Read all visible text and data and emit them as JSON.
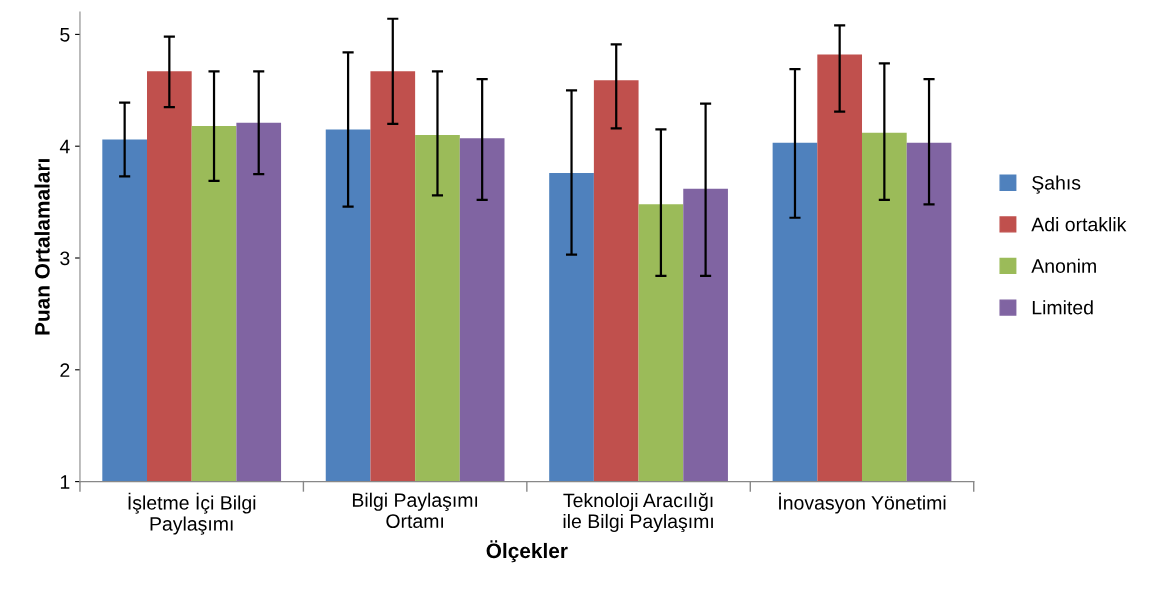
{
  "chart_data": {
    "type": "bar",
    "xlabel": "Ölçekler",
    "ylabel": "Puan Ortalamaları",
    "categories": [
      "İşletme İçi Bilgi\nPaylaşımı",
      "Bilgi Paylaşımı\nOrtamı",
      "Teknoloji Aracılığı\nile Bilgi Paylaşımı",
      "İnovasyon Yönetimi"
    ],
    "series": [
      {
        "name": "Şahıs",
        "color": "#4f81bd",
        "values": [
          4.06,
          4.15,
          3.76,
          4.03
        ],
        "errors": [
          [
            3.73,
            4.39
          ],
          [
            3.46,
            4.84
          ],
          [
            3.03,
            4.5
          ],
          [
            3.36,
            4.69
          ]
        ]
      },
      {
        "name": "Adi ortaklik",
        "color": "#c0504d",
        "values": [
          4.67,
          4.67,
          4.59,
          4.82
        ],
        "errors": [
          [
            4.35,
            4.98
          ],
          [
            4.2,
            5.14
          ],
          [
            4.16,
            4.91
          ],
          [
            4.31,
            5.08
          ]
        ]
      },
      {
        "name": "Anonim",
        "color": "#9bbb59",
        "values": [
          4.18,
          4.1,
          3.48,
          4.12
        ],
        "errors": [
          [
            3.69,
            4.67
          ],
          [
            3.56,
            4.67
          ],
          [
            2.84,
            4.15
          ],
          [
            3.52,
            4.74
          ]
        ]
      },
      {
        "name": "Limited",
        "color": "#8064a2",
        "values": [
          4.21,
          4.07,
          3.62,
          4.03
        ],
        "errors": [
          [
            3.75,
            4.67
          ],
          [
            3.52,
            4.6
          ],
          [
            2.84,
            4.38
          ],
          [
            3.48,
            4.6
          ]
        ]
      }
    ],
    "ylim": [
      1,
      5.2
    ],
    "yticks": [
      1,
      2,
      3,
      4,
      5
    ],
    "grid": false,
    "legend": "right"
  }
}
